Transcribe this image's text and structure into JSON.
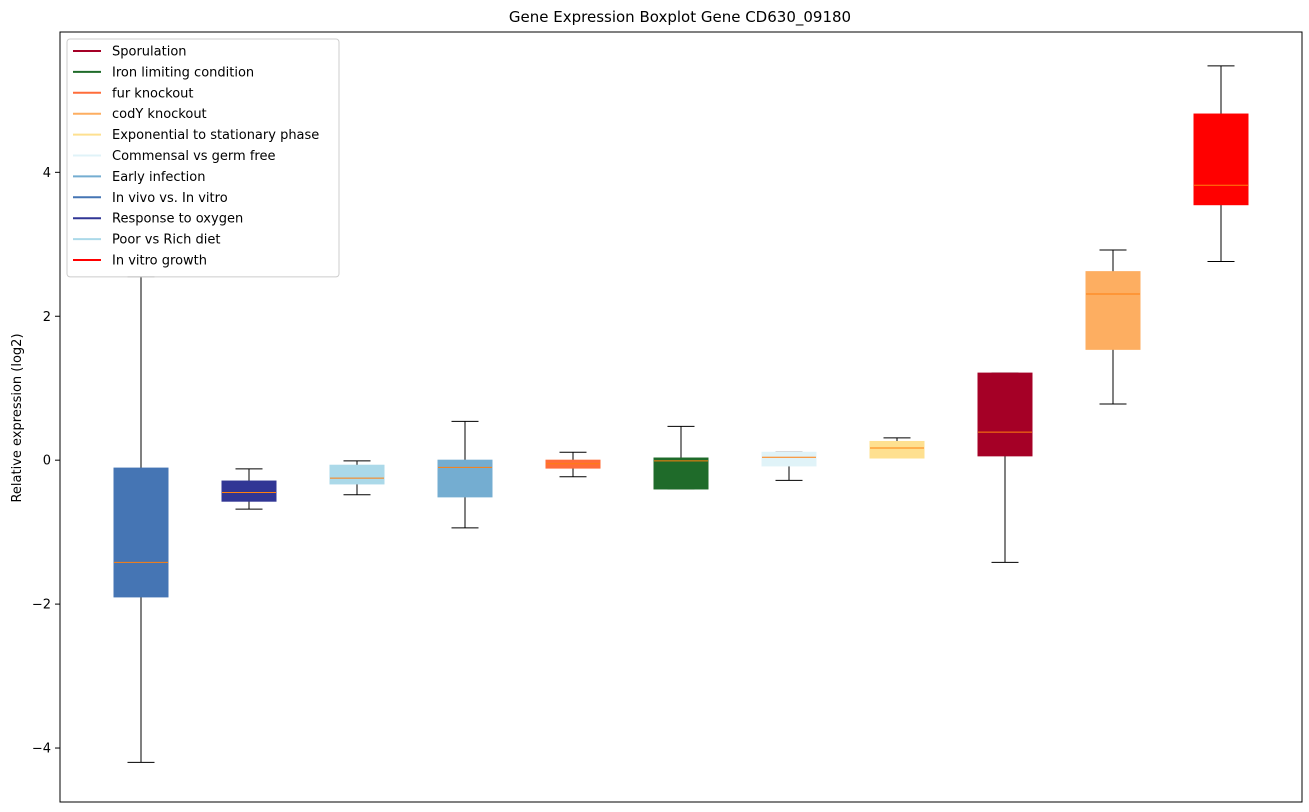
{
  "chart_data": {
    "type": "boxplot",
    "title": "Gene Expression Boxplot Gene CD630_09180",
    "xlabel": "",
    "ylabel": "Relative expression (log2)",
    "ylim": [
      -4.75,
      5.95
    ],
    "yticks": [
      -4,
      -2,
      0,
      2,
      4
    ],
    "ytick_labels": [
      "−4",
      "−2",
      "0",
      "2",
      "4"
    ],
    "grid": false,
    "legend_position": "top-left",
    "median_color": "#ff7f0e",
    "whisker_color": "#000000",
    "boxes": [
      {
        "series": "In vivo vs. In vitro",
        "color": "#4575b4",
        "whisker_low": -4.2,
        "q1": -1.9,
        "median": -1.42,
        "q3": -0.11,
        "whisker_high": 2.55
      },
      {
        "series": "Response to oxygen",
        "color": "#313695",
        "whisker_low": -0.68,
        "q1": -0.57,
        "median": -0.45,
        "q3": -0.29,
        "whisker_high": -0.12
      },
      {
        "series": "Poor vs Rich diet",
        "color": "#abd9e9",
        "whisker_low": -0.48,
        "q1": -0.33,
        "median": -0.25,
        "q3": -0.07,
        "whisker_high": -0.01
      },
      {
        "series": "Early infection",
        "color": "#74add1",
        "whisker_low": -0.94,
        "q1": -0.51,
        "median": -0.1,
        "q3": 0.0,
        "whisker_high": 0.54
      },
      {
        "series": "fur knockout",
        "color": "#ff6d3a",
        "whisker_low": -0.23,
        "q1": -0.11,
        "median": -0.05,
        "q3": 0.0,
        "whisker_high": 0.11
      },
      {
        "series": "Iron limiting condition",
        "color": "#1f6b2a",
        "whisker_low": -0.4,
        "q1": -0.4,
        "median": -0.01,
        "q3": 0.03,
        "whisker_high": 0.47
      },
      {
        "series": "Commensal vs germ free",
        "color": "#e0f3f8",
        "whisker_low": -0.28,
        "q1": -0.08,
        "median": 0.04,
        "q3": 0.11,
        "whisker_high": 0.11
      },
      {
        "series": "Exponential to stationary phase",
        "color": "#fee090",
        "whisker_low": 0.03,
        "q1": 0.03,
        "median": 0.17,
        "q3": 0.26,
        "whisker_high": 0.31
      },
      {
        "series": "Sporulation",
        "color": "#a50026",
        "whisker_low": -1.42,
        "q1": 0.06,
        "median": 0.39,
        "q3": 1.21,
        "whisker_high": 1.21
      },
      {
        "series": "codY knockout",
        "color": "#fdae61",
        "whisker_low": 0.78,
        "q1": 1.54,
        "median": 2.31,
        "q3": 2.62,
        "whisker_high": 2.92
      },
      {
        "series": "In vitro growth",
        "color": "#ff0000",
        "whisker_low": 2.76,
        "q1": 3.55,
        "median": 3.82,
        "q3": 4.81,
        "whisker_high": 5.48
      }
    ],
    "legend": [
      {
        "name": "Sporulation",
        "color": "#a50026"
      },
      {
        "name": "Iron limiting condition",
        "color": "#1f6b2a"
      },
      {
        "name": "fur knockout",
        "color": "#ff6d3a"
      },
      {
        "name": "codY knockout",
        "color": "#fdae61"
      },
      {
        "name": "Exponential to stationary phase",
        "color": "#fee090"
      },
      {
        "name": "Commensal vs germ free",
        "color": "#e0f3f8"
      },
      {
        "name": "Early infection",
        "color": "#74add1"
      },
      {
        "name": "In vivo vs. In vitro",
        "color": "#4575b4"
      },
      {
        "name": "Response to oxygen",
        "color": "#313695"
      },
      {
        "name": "Poor vs Rich diet",
        "color": "#abd9e9"
      },
      {
        "name": "In vitro growth",
        "color": "#ff0000"
      }
    ]
  }
}
